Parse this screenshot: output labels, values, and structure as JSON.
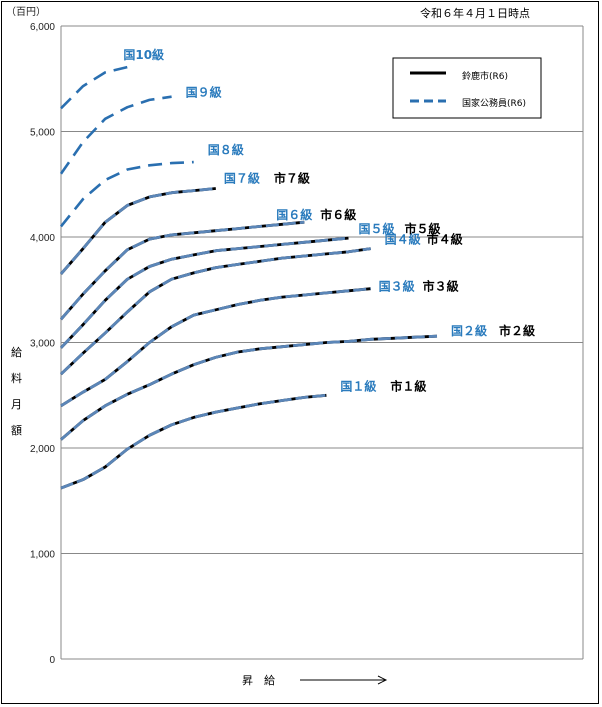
{
  "chart_data": {
    "type": "line",
    "title": "",
    "unit_label": "（百円）",
    "date_note": "令和６年４月１日時点",
    "ylabel": "給料月額",
    "xlabel": "昇　給",
    "ylim": [
      0,
      6000
    ],
    "yticks": [
      0,
      1000,
      2000,
      3000,
      4000,
      5000,
      6000
    ],
    "ytick_labels": [
      "0",
      "1,000",
      "2,000",
      "3,000",
      "4,000",
      "5,000",
      "6,000"
    ],
    "grid": true,
    "legend": {
      "placement": "top-right",
      "entries": [
        {
          "label": "鈴鹿市(R6)",
          "style": "solid",
          "color": "#000000"
        },
        {
          "label": "国家公務員(R6)",
          "style": "dashed",
          "color": "#2a6fb0"
        }
      ]
    },
    "colors": {
      "national": "#5b86b8",
      "city": "#000000"
    },
    "series": [
      {
        "kuni_label": "国１級",
        "shi_label": "市１級",
        "dashed": false,
        "x": [
          0,
          5,
          10,
          15,
          20,
          25,
          30,
          35,
          40,
          45,
          50,
          55,
          60
        ],
        "y": [
          1620,
          1700,
          1820,
          1990,
          2120,
          2220,
          2290,
          2340,
          2380,
          2420,
          2450,
          2480,
          2500
        ]
      },
      {
        "kuni_label": "国２級",
        "shi_label": "市２級",
        "dashed": false,
        "x": [
          0,
          5,
          10,
          15,
          20,
          25,
          30,
          35,
          40,
          45,
          50,
          55,
          60,
          65,
          70,
          75,
          80,
          85
        ],
        "y": [
          2080,
          2260,
          2400,
          2510,
          2600,
          2700,
          2790,
          2860,
          2910,
          2940,
          2960,
          2980,
          3000,
          3010,
          3030,
          3040,
          3050,
          3060
        ]
      },
      {
        "kuni_label": "国３級",
        "shi_label": "市３級",
        "dashed": false,
        "x": [
          0,
          5,
          10,
          15,
          20,
          25,
          30,
          35,
          40,
          45,
          50,
          55,
          60,
          65,
          70
        ],
        "y": [
          2400,
          2530,
          2650,
          2820,
          3000,
          3150,
          3260,
          3310,
          3360,
          3400,
          3430,
          3450,
          3470,
          3490,
          3510
        ]
      },
      {
        "kuni_label": "国４級",
        "shi_label": "市４級",
        "dashed": false,
        "x": [
          0,
          5,
          10,
          15,
          20,
          25,
          30,
          35,
          40,
          45,
          50,
          55,
          60,
          65,
          70
        ],
        "y": [
          2700,
          2900,
          3090,
          3290,
          3480,
          3600,
          3660,
          3710,
          3740,
          3770,
          3800,
          3820,
          3840,
          3860,
          3890
        ]
      },
      {
        "kuni_label": "国５級",
        "shi_label": "市５級",
        "dashed": false,
        "x": [
          0,
          5,
          10,
          15,
          20,
          25,
          30,
          35,
          40,
          45,
          50,
          55,
          60,
          65
        ],
        "y": [
          2950,
          3170,
          3400,
          3600,
          3720,
          3790,
          3830,
          3870,
          3890,
          3910,
          3930,
          3950,
          3970,
          3990
        ]
      },
      {
        "kuni_label": "国６級",
        "shi_label": "市６級",
        "dashed": false,
        "x": [
          0,
          5,
          10,
          15,
          20,
          25,
          30,
          35,
          40,
          45,
          50,
          55
        ],
        "y": [
          3220,
          3460,
          3680,
          3880,
          3980,
          4020,
          4040,
          4060,
          4080,
          4100,
          4120,
          4140
        ]
      },
      {
        "kuni_label": "国７級",
        "shi_label": "市７級",
        "dashed": false,
        "x": [
          0,
          5,
          10,
          15,
          20,
          25,
          30,
          35
        ],
        "y": [
          3650,
          3890,
          4140,
          4300,
          4380,
          4420,
          4440,
          4460
        ]
      },
      {
        "kuni_label": "国８級",
        "shi_label": "",
        "dashed": true,
        "x": [
          0,
          5,
          10,
          15,
          20,
          25,
          30
        ],
        "y": [
          4100,
          4360,
          4540,
          4640,
          4680,
          4700,
          4710
        ]
      },
      {
        "kuni_label": "国９級",
        "shi_label": "",
        "dashed": true,
        "x": [
          0,
          5,
          10,
          15,
          20,
          25
        ],
        "y": [
          4600,
          4900,
          5120,
          5230,
          5300,
          5330
        ]
      },
      {
        "kuni_label": "国10級",
        "shi_label": "",
        "dashed": true,
        "x": [
          0,
          5,
          10,
          15
        ],
        "y": [
          5220,
          5430,
          5560,
          5610
        ]
      }
    ]
  }
}
